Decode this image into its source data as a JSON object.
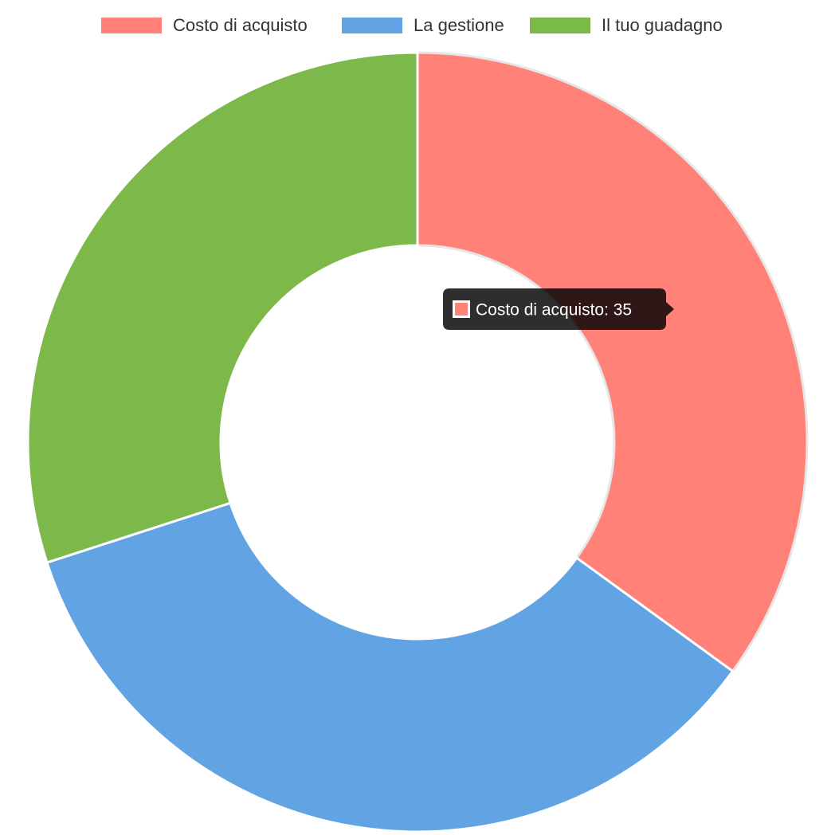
{
  "chart_data": {
    "type": "doughnut",
    "categories": [
      "Costo di acquisto",
      "La gestione",
      "Il tuo guadagno"
    ],
    "values": [
      35,
      35,
      30
    ],
    "colors": [
      "#ff8178",
      "#62a4e3",
      "#7db94a"
    ],
    "legend": "top",
    "tooltip": "Costo di acquisto: 35"
  }
}
